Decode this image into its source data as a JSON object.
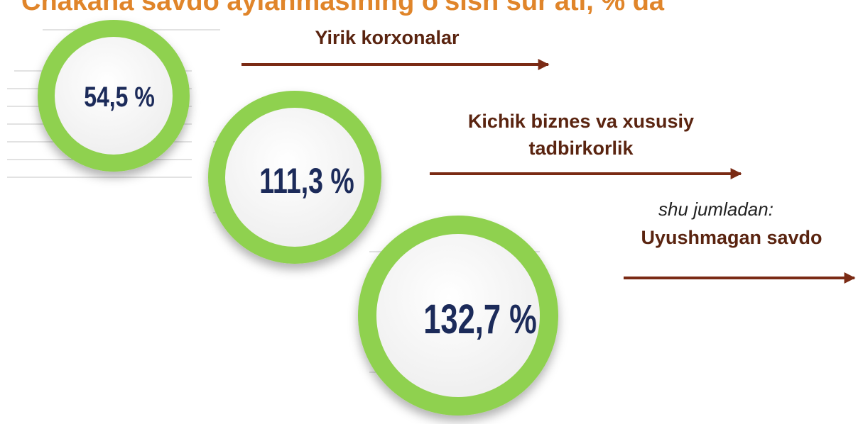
{
  "header": {
    "title": "Chakana savdo aylanmasining o'sish sur'ati, % da"
  },
  "items": [
    {
      "value": "54,5 %",
      "label": "Yirik korxonalar"
    },
    {
      "value": "111,3 %",
      "label_lines": [
        "Kichik biznes va xususiy",
        "tadbirkorlik"
      ]
    },
    {
      "value": "132,7 %",
      "note": "shu jumladan:",
      "label": "Uyushmagan savdo"
    }
  ]
}
